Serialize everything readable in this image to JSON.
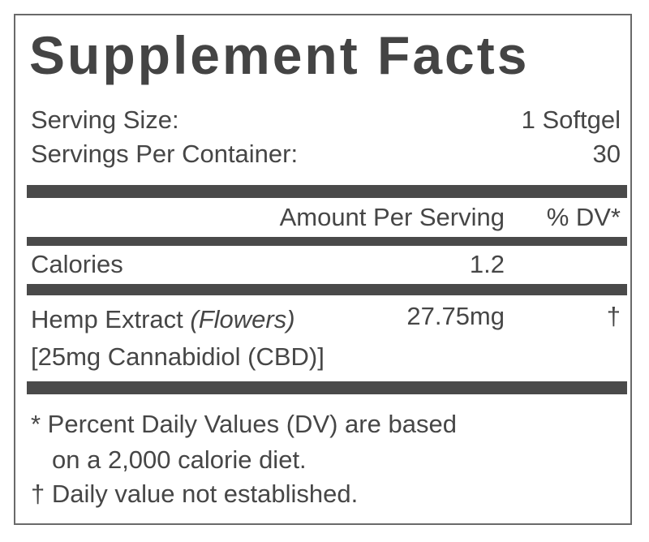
{
  "title": "Supplement Facts",
  "serving": [
    {
      "label": "Serving Size:",
      "value": "1 Softgel"
    },
    {
      "label": "Servings Per Container:",
      "value": "30"
    }
  ],
  "header": {
    "amount": "Amount Per Serving",
    "dv": "% DV*"
  },
  "rows": [
    {
      "label": "Calories",
      "amount": "1.2"
    },
    {
      "label": "Hemp Extract",
      "note": "(Flowers)",
      "amount": "27.75mg",
      "dv": "†",
      "sub": "[25mg Cannabidiol (CBD)]"
    }
  ],
  "footnotes": [
    "* Percent Daily Values (DV) are based",
    "on a 2,000 calorie diet.",
    "† Daily value not established."
  ]
}
